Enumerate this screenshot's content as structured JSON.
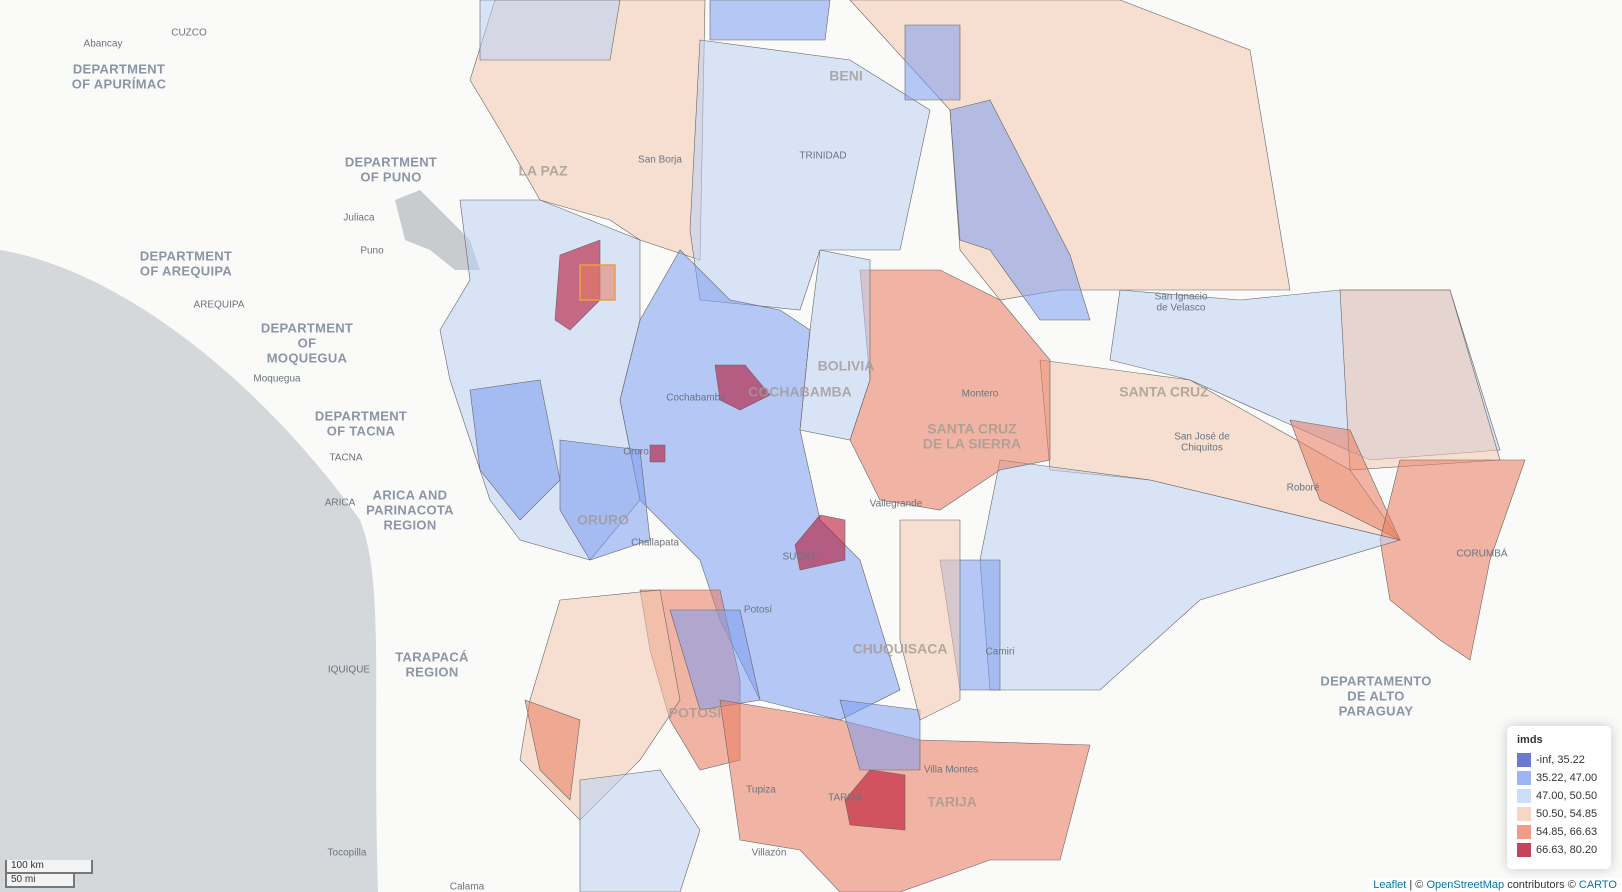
{
  "map": {
    "labels": [
      [
        "Abancay"
      ],
      [
        "CUZCO"
      ],
      [
        "DEPARTMENT",
        "OF APURÍMAC"
      ],
      [
        "DEPARTMENT",
        "OF PUNO"
      ],
      [
        "LA PAZ"
      ],
      [
        "Juliaca"
      ],
      [
        "Puno"
      ],
      [
        "DEPARTMENT",
        "OF AREQUIPA"
      ],
      [
        "AREQUIPA"
      ],
      [
        "DEPARTMENT",
        "OF",
        "MOQUEGUA"
      ],
      [
        "Moquegua"
      ],
      [
        "San Borja"
      ],
      [
        "TRINIDAD"
      ],
      [
        "BENI"
      ],
      [
        "San Ignacio",
        "de Velasco"
      ],
      [
        "BOLIVIA"
      ],
      [
        "COCHABAMBA"
      ],
      [
        "Cochabamba"
      ],
      [
        "SANTA CRUZ"
      ],
      [
        "Montero"
      ],
      [
        "SANTA CRUZ",
        "DE LA SIERRA"
      ],
      [
        "San José de",
        "Chiquitos"
      ],
      [
        "Roboré"
      ],
      [
        "DEPARTMENT",
        "OF TACNA"
      ],
      [
        "TACNA"
      ],
      [
        "Oruro"
      ],
      [
        "ARICA"
      ],
      [
        "ARICA AND",
        "PARINACOTA",
        "REGION"
      ],
      [
        "Vallegrande"
      ],
      [
        "ORURO"
      ],
      [
        "Challapata"
      ],
      [
        "SUCRE"
      ],
      [
        "CORUMBÁ"
      ],
      [
        "Potosí"
      ],
      [
        "CHUQUISACA"
      ],
      [
        "Camiri"
      ],
      [
        "TARAPACÁ",
        "REGION"
      ],
      [
        "IQUIQUE"
      ],
      [
        "POTOSÍ"
      ],
      [
        "DEPARTAMENTO",
        "DE ALTO",
        "PARAGUAY"
      ],
      [
        "Villa Montes"
      ],
      [
        "TARIJA"
      ],
      [
        "TARIJA"
      ],
      [
        "Tupiza"
      ],
      [
        "Villazón"
      ],
      [
        "Tocopilla"
      ],
      [
        "Calama"
      ]
    ]
  },
  "legend": {
    "title": "imds",
    "items": [
      {
        "label": "-inf, 35.22",
        "color": "#3b4cc0"
      },
      {
        "label": "35.22, 47.00",
        "color": "#7b9cf0"
      },
      {
        "label": "47.00, 50.50",
        "color": "#bcd0f4"
      },
      {
        "label": "50.50, 54.85",
        "color": "#f3c8b0"
      },
      {
        "label": "54.85, 66.63",
        "color": "#ea7a5e"
      },
      {
        "label": "66.63, 80.20",
        "color": "#b40426"
      }
    ]
  },
  "scale": [
    "100 km",
    "50 mi"
  ],
  "attribution": {
    "leaflet": "Leaflet",
    "osm_prefix": "| ©",
    "osm": "OpenStreetMap",
    "carto_prefix": "contributors ©",
    "carto": "CARTO"
  }
}
